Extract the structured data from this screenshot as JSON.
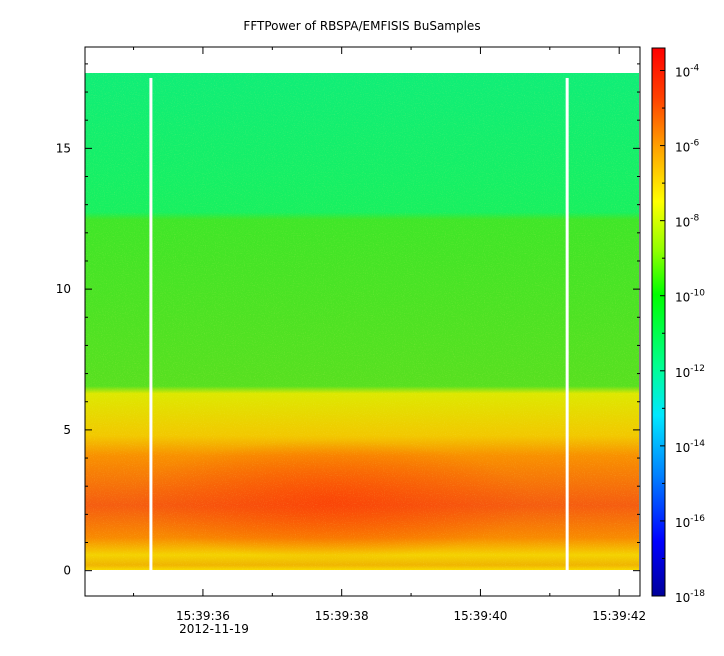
{
  "chart_data": {
    "type": "heatmap",
    "title": "FFTPower of RBSPA/EMFISIS  BuSamples",
    "xlabel": "",
    "ylabel": "",
    "x_ticks": [
      "15:39:36",
      "15:39:38",
      "15:39:40",
      "15:39:42"
    ],
    "x_date_label": "2012-11-19",
    "x_range_seconds": [
      34.3,
      42.3
    ],
    "y_ticks": [
      "0",
      "5",
      "10",
      "15"
    ],
    "ylim": [
      -0.9,
      18.6
    ],
    "data_y_range": [
      0,
      17.5
    ],
    "colorbar": {
      "scale": "log",
      "base": "10",
      "exponents": [
        "-4",
        "-6",
        "-8",
        "-10",
        "-12",
        "-14",
        "-16",
        "-18"
      ],
      "range_exponent": [
        -18,
        -3.4
      ],
      "colors": [
        "#00009a",
        "#0000ff",
        "#0080ff",
        "#00e8ff",
        "#00ff90",
        "#00ff00",
        "#90ff00",
        "#ffff00",
        "#ffa000",
        "#ff4000",
        "#ff0000"
      ]
    },
    "data_gaps_seconds": [
      35.25,
      41.25
    ],
    "power_profile": [
      {
        "freq_range": [
          0,
          0.3
        ],
        "level": "yellow"
      },
      {
        "freq_range": [
          0.3,
          1.1
        ],
        "level": "yellow-orange"
      },
      {
        "freq_range": [
          1.1,
          4.0
        ],
        "level": "orange-red"
      },
      {
        "freq_range": [
          4.0,
          6.2
        ],
        "level": "yellow"
      },
      {
        "freq_range": [
          6.2,
          12.3
        ],
        "level": "green"
      },
      {
        "freq_range": [
          12.3,
          17.5
        ],
        "level": "cyan-green"
      }
    ]
  }
}
